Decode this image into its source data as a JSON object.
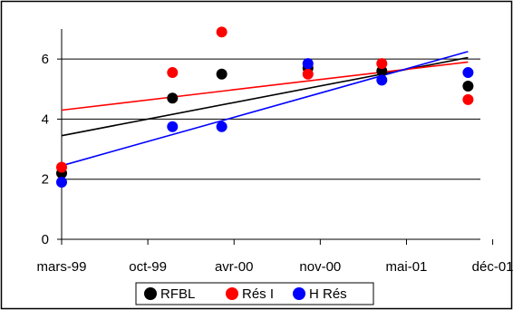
{
  "chart_data": {
    "type": "scatter",
    "title": "",
    "xlabel": "",
    "ylabel": "",
    "x_ticks": [
      "mars-99",
      "oct-99",
      "avr-00",
      "nov-00",
      "mai-01",
      "déc-01"
    ],
    "xlim": [
      "1999-03",
      "2002-01"
    ],
    "ylim": [
      0,
      7
    ],
    "y_ticks": [
      "0",
      "2",
      "4",
      "6"
    ],
    "y_tick_values": [
      0,
      2,
      4,
      6
    ],
    "grid": "horizontal at y ticks",
    "legend_position": "bottom",
    "series": [
      {
        "name": "RFBL",
        "color": "#000000",
        "marker": "circle",
        "x": [
          "1999-03",
          "1999-12",
          "2000-04",
          "2000-11",
          "2001-05",
          "2001-12"
        ],
        "y": [
          2.2,
          4.7,
          5.5,
          5.7,
          5.6,
          5.1
        ],
        "trendline": {
          "from": [
            "1999-03",
            3.45
          ],
          "to": [
            "2001-12",
            6.05
          ]
        }
      },
      {
        "name": "Rés I",
        "color": "#ff0000",
        "marker": "circle",
        "x": [
          "1999-03",
          "1999-12",
          "2000-04",
          "2000-11",
          "2001-05",
          "2001-12"
        ],
        "y": [
          2.4,
          5.55,
          6.9,
          5.5,
          5.85,
          4.65
        ],
        "trendline": {
          "from": [
            "1999-03",
            4.3
          ],
          "to": [
            "2001-12",
            5.9
          ]
        }
      },
      {
        "name": "H Rés",
        "color": "#0000ff",
        "marker": "circle",
        "x": [
          "1999-03",
          "1999-12",
          "2000-04",
          "2000-11",
          "2001-05",
          "2001-12"
        ],
        "y": [
          1.9,
          3.75,
          3.75,
          5.85,
          5.3,
          5.55
        ],
        "trendline": {
          "from": [
            "1999-03",
            2.45
          ],
          "to": [
            "2001-12",
            6.25
          ]
        }
      }
    ]
  }
}
